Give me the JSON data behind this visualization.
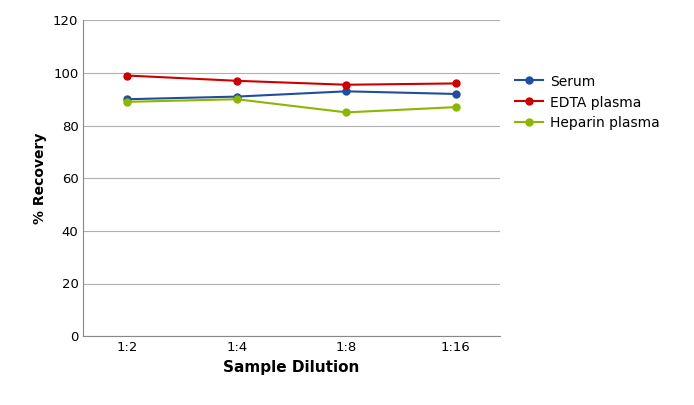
{
  "x_labels": [
    "1:2",
    "1:4",
    "1:8",
    "1:16"
  ],
  "x_positions": [
    0,
    1,
    2,
    3
  ],
  "serum": [
    90,
    91,
    93,
    92
  ],
  "edta_plasma": [
    99,
    97,
    95.5,
    96
  ],
  "heparin_plasma": [
    89,
    90,
    85,
    87
  ],
  "serum_color": "#1f4e9c",
  "edta_color": "#cc0000",
  "heparin_color": "#8db600",
  "ylabel": "% Recovery",
  "xlabel": "Sample Dilution",
  "ylim": [
    0,
    120
  ],
  "yticks": [
    0,
    20,
    40,
    60,
    80,
    100,
    120
  ],
  "legend_labels": [
    "Serum",
    "EDTA plasma",
    "Heparin plasma"
  ],
  "bg_color": "#ffffff",
  "grid_color": "#b0b0b0",
  "marker_size": 5,
  "line_width": 1.5
}
